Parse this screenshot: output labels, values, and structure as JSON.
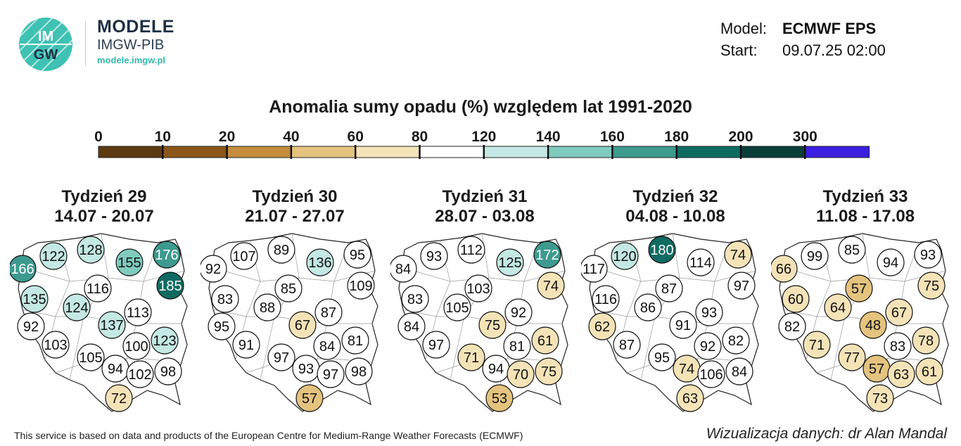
{
  "header": {
    "logo_text_top": "IM",
    "logo_text_bottom": "GW",
    "brand_name": "MODELE",
    "brand_sub": "IMGW-PIB",
    "brand_url": "modele.imgw.pl",
    "model_label": "Model:",
    "model_value": "ECMWF EPS",
    "start_label": "Start:",
    "start_value": "09.07.25 02:00"
  },
  "title": "Anomalia sumy opadu (%) względem lat 1991-2020",
  "legend": {
    "ticks": [
      "0",
      "10",
      "20",
      "40",
      "60",
      "80",
      "120",
      "140",
      "160",
      "180",
      "200",
      "300"
    ],
    "bins": [
      {
        "color": "#5c3a12"
      },
      {
        "color": "#8c5618"
      },
      {
        "color": "#c48c3c"
      },
      {
        "color": "#e3c37e"
      },
      {
        "color": "#f5e3b8"
      },
      {
        "color": "#ffffff"
      },
      {
        "color": "#c4e8e3"
      },
      {
        "color": "#7fcbbd"
      },
      {
        "color": "#3d9a8e"
      },
      {
        "color": "#0f6b62"
      },
      {
        "color": "#0a3d38"
      },
      {
        "color": "#3a1fe0"
      }
    ]
  },
  "weeks": [
    {
      "title": "Tydzień 29",
      "dates": "14.07 - 20.07",
      "values": [
        166,
        122,
        128,
        155,
        176,
        185,
        116,
        135,
        124,
        92,
        137,
        113,
        103,
        100,
        123,
        105,
        94,
        102,
        98,
        72
      ]
    },
    {
      "title": "Tydzień 30",
      "dates": "21.07 - 27.07",
      "values": [
        92,
        107,
        89,
        136,
        95,
        109,
        85,
        83,
        88,
        95,
        67,
        87,
        91,
        84,
        81,
        97,
        93,
        97,
        98,
        57
      ]
    },
    {
      "title": "Tydzień 31",
      "dates": "28.07 - 03.08",
      "values": [
        84,
        93,
        112,
        125,
        172,
        74,
        103,
        83,
        105,
        84,
        75,
        92,
        97,
        81,
        61,
        71,
        94,
        70,
        75,
        53
      ]
    },
    {
      "title": "Tydzień 32",
      "dates": "04.08 - 10.08",
      "values": [
        117,
        120,
        180,
        114,
        74,
        97,
        87,
        116,
        86,
        62,
        91,
        93,
        87,
        92,
        82,
        95,
        74,
        106,
        84,
        63
      ]
    },
    {
      "title": "Tydzień 33",
      "dates": "11.08 - 17.08",
      "values": [
        66,
        99,
        85,
        94,
        93,
        75,
        57,
        60,
        64,
        82,
        48,
        67,
        71,
        83,
        78,
        77,
        57,
        63,
        61,
        73
      ]
    }
  ],
  "footer": {
    "left": "This service is based on data and products of the European Centre for Medium-Range Weather Forecasts (ECMWF)",
    "right": "Wizualizacja danych: dr Alan Mandal"
  }
}
